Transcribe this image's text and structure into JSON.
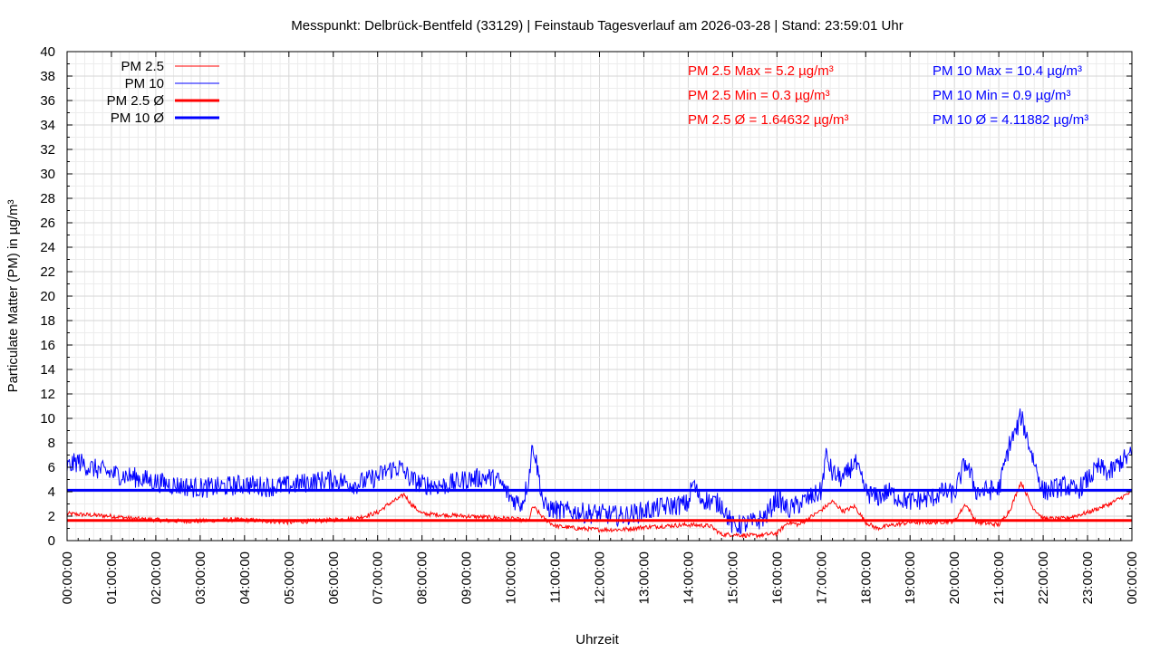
{
  "chart_data": {
    "type": "line",
    "title": "Messpunkt: Delbrück-Bentfeld (33129) | Feinstaub Tagesverlauf am 2026-03-28 | Stand: 23:59:01 Uhr",
    "xlabel": "Uhrzeit",
    "ylabel": "Particulate Matter (PM) in µg/m³",
    "ylim": [
      0,
      40
    ],
    "xlim": [
      0,
      24
    ],
    "grid": true,
    "legend_position": "top-left",
    "y_ticks": [
      "0",
      "2",
      "4",
      "6",
      "8",
      "10",
      "12",
      "14",
      "16",
      "18",
      "20",
      "22",
      "24",
      "26",
      "28",
      "30",
      "32",
      "34",
      "36",
      "38",
      "40"
    ],
    "x_ticks": [
      "00:00:00",
      "01:00:00",
      "02:00:00",
      "03:00:00",
      "04:00:00",
      "05:00:00",
      "06:00:00",
      "07:00:00",
      "08:00:00",
      "09:00:00",
      "10:00:00",
      "11:00:00",
      "12:00:00",
      "13:00:00",
      "14:00:00",
      "15:00:00",
      "16:00:00",
      "17:00:00",
      "18:00:00",
      "19:00:00",
      "20:00:00",
      "21:00:00",
      "22:00:00",
      "23:00:00",
      "00:00:00"
    ],
    "series": [
      {
        "name": "PM 2.5",
        "color": "#ff0000",
        "style": "thin",
        "x": [
          0,
          0.5,
          1,
          1.5,
          2,
          2.5,
          3,
          3.5,
          4,
          4.5,
          5,
          5.5,
          6,
          6.5,
          7,
          7.25,
          7.5,
          7.6,
          7.75,
          8,
          8.5,
          9,
          9.5,
          10,
          10.4,
          10.5,
          10.75,
          11,
          11.5,
          12,
          12.5,
          13,
          13.5,
          14,
          14.5,
          14.75,
          15,
          15.5,
          16,
          16.25,
          16.5,
          17,
          17.25,
          17.5,
          17.75,
          18,
          18.25,
          18.5,
          19,
          19.5,
          20,
          20.25,
          20.5,
          21,
          21.25,
          21.5,
          21.75,
          22,
          22.5,
          23,
          23.5,
          24
        ],
        "y": [
          2.2,
          2.1,
          2.0,
          1.8,
          1.7,
          1.6,
          1.6,
          1.7,
          1.7,
          1.6,
          1.5,
          1.6,
          1.7,
          1.8,
          2.3,
          3.0,
          3.5,
          3.8,
          3.0,
          2.2,
          2.1,
          2.0,
          1.9,
          1.8,
          1.6,
          2.8,
          1.8,
          1.2,
          1.0,
          0.9,
          0.9,
          1.1,
          1.2,
          1.3,
          1.2,
          0.5,
          0.5,
          0.4,
          0.6,
          1.5,
          1.3,
          2.5,
          3.2,
          2.4,
          2.8,
          1.5,
          1.0,
          1.2,
          1.5,
          1.5,
          1.6,
          3.0,
          1.5,
          1.3,
          2.5,
          4.8,
          2.8,
          1.8,
          1.8,
          2.3,
          3.0,
          4.0
        ]
      },
      {
        "name": "PM 10",
        "color": "#0000ff",
        "style": "thin",
        "x": [
          0,
          0.25,
          0.5,
          1,
          1.5,
          2,
          2.5,
          3,
          3.5,
          4,
          4.5,
          5,
          5.5,
          6,
          6.5,
          7,
          7.25,
          7.5,
          7.75,
          8,
          8.5,
          9,
          9.5,
          9.75,
          10,
          10.25,
          10.4,
          10.5,
          10.75,
          11,
          11.5,
          12,
          12.5,
          13,
          13.5,
          14,
          14.1,
          14.25,
          14.5,
          14.75,
          15,
          15.5,
          15.75,
          16,
          16.25,
          16.5,
          16.75,
          17,
          17.1,
          17.25,
          17.5,
          17.75,
          18,
          18.25,
          18.5,
          18.75,
          19,
          19.5,
          19.75,
          20,
          20.25,
          20.5,
          21,
          21.25,
          21.4,
          21.5,
          21.75,
          22,
          22.5,
          22.75,
          23,
          23.25,
          23.5,
          23.75,
          24
        ],
        "y": [
          6.0,
          6.5,
          6.0,
          5.5,
          5.2,
          4.8,
          4.5,
          4.3,
          4.4,
          4.6,
          4.4,
          4.5,
          4.8,
          5.0,
          4.6,
          5.2,
          5.8,
          6.0,
          5.0,
          4.6,
          4.5,
          5.0,
          5.2,
          4.8,
          3.5,
          3.0,
          5.0,
          8.0,
          2.8,
          2.5,
          2.3,
          2.2,
          2.0,
          2.4,
          2.8,
          3.0,
          4.8,
          3.5,
          3.2,
          3.0,
          1.2,
          1.5,
          2.0,
          3.5,
          2.5,
          3.0,
          3.5,
          4.0,
          7.0,
          5.5,
          5.0,
          6.5,
          4.0,
          3.5,
          4.0,
          3.5,
          3.2,
          3.5,
          4.0,
          3.8,
          6.5,
          4.0,
          4.2,
          8.0,
          9.0,
          10.2,
          7.0,
          4.0,
          4.5,
          4.0,
          5.0,
          6.0,
          5.5,
          6.5,
          7.0
        ]
      },
      {
        "name": "PM 2.5 Ø",
        "color": "#ff0000",
        "style": "thick",
        "x": [
          0,
          24
        ],
        "y": [
          1.64632,
          1.64632
        ]
      },
      {
        "name": "PM 10 Ø",
        "color": "#0000ff",
        "style": "thick",
        "x": [
          0,
          24
        ],
        "y": [
          4.11882,
          4.11882
        ]
      }
    ],
    "annotations": [
      {
        "text": "PM 2.5 Max = 5.2 µg/m³",
        "color": "#ff0000"
      },
      {
        "text": "PM 2.5 Min = 0.3 µg/m³",
        "color": "#ff0000"
      },
      {
        "text": "PM 2.5 Ø = 1.64632 µg/m³",
        "color": "#ff0000"
      },
      {
        "text": "PM 10 Max = 10.4 µg/m³",
        "color": "#0000ff"
      },
      {
        "text": "PM 10 Min = 0.9 µg/m³",
        "color": "#0000ff"
      },
      {
        "text": "PM 10 Ø = 4.11882 µg/m³",
        "color": "#0000ff"
      }
    ]
  }
}
